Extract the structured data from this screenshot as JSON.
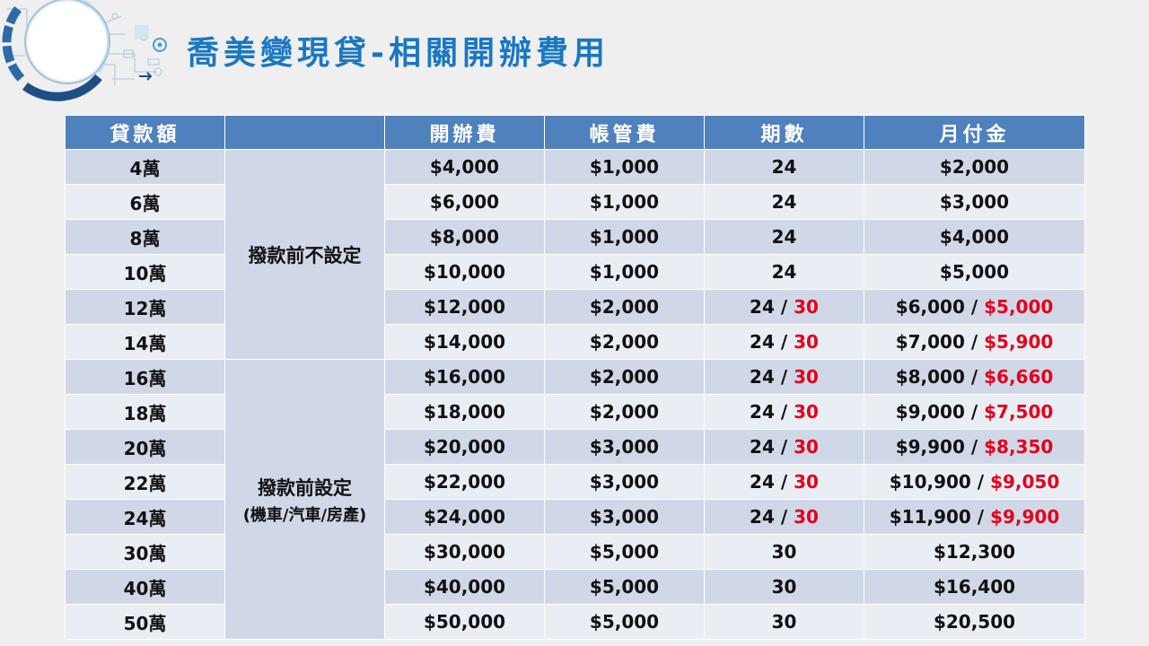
{
  "title": "喬美變現貸-相關開辦費用",
  "colors": {
    "header_bg": "#4f81bd",
    "row_dark": "#d0d8e8",
    "row_light": "#e9edf4",
    "title": "#1a78c2",
    "highlight": "#e3001b"
  },
  "table": {
    "headers": [
      "貸款額",
      "",
      "開辦費",
      "帳管費",
      "期數",
      "月付金"
    ],
    "condition_a": "撥款前不設定",
    "condition_b": "撥款前設定",
    "condition_b_sub": "(機車/汽車/房產)",
    "rows": [
      {
        "amount": "4萬",
        "fee": "$4,000",
        "mgmt": "$1,000",
        "term": "24",
        "term_alt": "",
        "payment": "$2,000",
        "payment_alt": ""
      },
      {
        "amount": "6萬",
        "fee": "$6,000",
        "mgmt": "$1,000",
        "term": "24",
        "term_alt": "",
        "payment": "$3,000",
        "payment_alt": ""
      },
      {
        "amount": "8萬",
        "fee": "$8,000",
        "mgmt": "$1,000",
        "term": "24",
        "term_alt": "",
        "payment": "$4,000",
        "payment_alt": ""
      },
      {
        "amount": "10萬",
        "fee": "$10,000",
        "mgmt": "$1,000",
        "term": "24",
        "term_alt": "",
        "payment": "$5,000",
        "payment_alt": ""
      },
      {
        "amount": "12萬",
        "fee": "$12,000",
        "mgmt": "$2,000",
        "term": "24",
        "term_alt": "30",
        "payment": "$6,000",
        "payment_alt": "$5,000"
      },
      {
        "amount": "14萬",
        "fee": "$14,000",
        "mgmt": "$2,000",
        "term": "24",
        "term_alt": "30",
        "payment": "$7,000",
        "payment_alt": "$5,900"
      },
      {
        "amount": "16萬",
        "fee": "$16,000",
        "mgmt": "$2,000",
        "term": "24",
        "term_alt": "30",
        "payment": "$8,000",
        "payment_alt": "$6,660"
      },
      {
        "amount": "18萬",
        "fee": "$18,000",
        "mgmt": "$2,000",
        "term": "24",
        "term_alt": "30",
        "payment": "$9,000",
        "payment_alt": "$7,500"
      },
      {
        "amount": "20萬",
        "fee": "$20,000",
        "mgmt": "$3,000",
        "term": "24",
        "term_alt": "30",
        "payment": "$9,900",
        "payment_alt": "$8,350"
      },
      {
        "amount": "22萬",
        "fee": "$22,000",
        "mgmt": "$3,000",
        "term": "24",
        "term_alt": "30",
        "payment": "$10,900",
        "payment_alt": "$9,050"
      },
      {
        "amount": "24萬",
        "fee": "$24,000",
        "mgmt": "$3,000",
        "term": "24",
        "term_alt": "30",
        "payment": "$11,900",
        "payment_alt": "$9,900"
      },
      {
        "amount": "30萬",
        "fee": "$30,000",
        "mgmt": "$5,000",
        "term": "30",
        "term_alt": "",
        "payment": "$12,300",
        "payment_alt": ""
      },
      {
        "amount": "40萬",
        "fee": "$40,000",
        "mgmt": "$5,000",
        "term": "30",
        "term_alt": "",
        "payment": "$16,400",
        "payment_alt": ""
      },
      {
        "amount": "50萬",
        "fee": "$50,000",
        "mgmt": "$5,000",
        "term": "30",
        "term_alt": "",
        "payment": "$20,500",
        "payment_alt": ""
      }
    ]
  }
}
